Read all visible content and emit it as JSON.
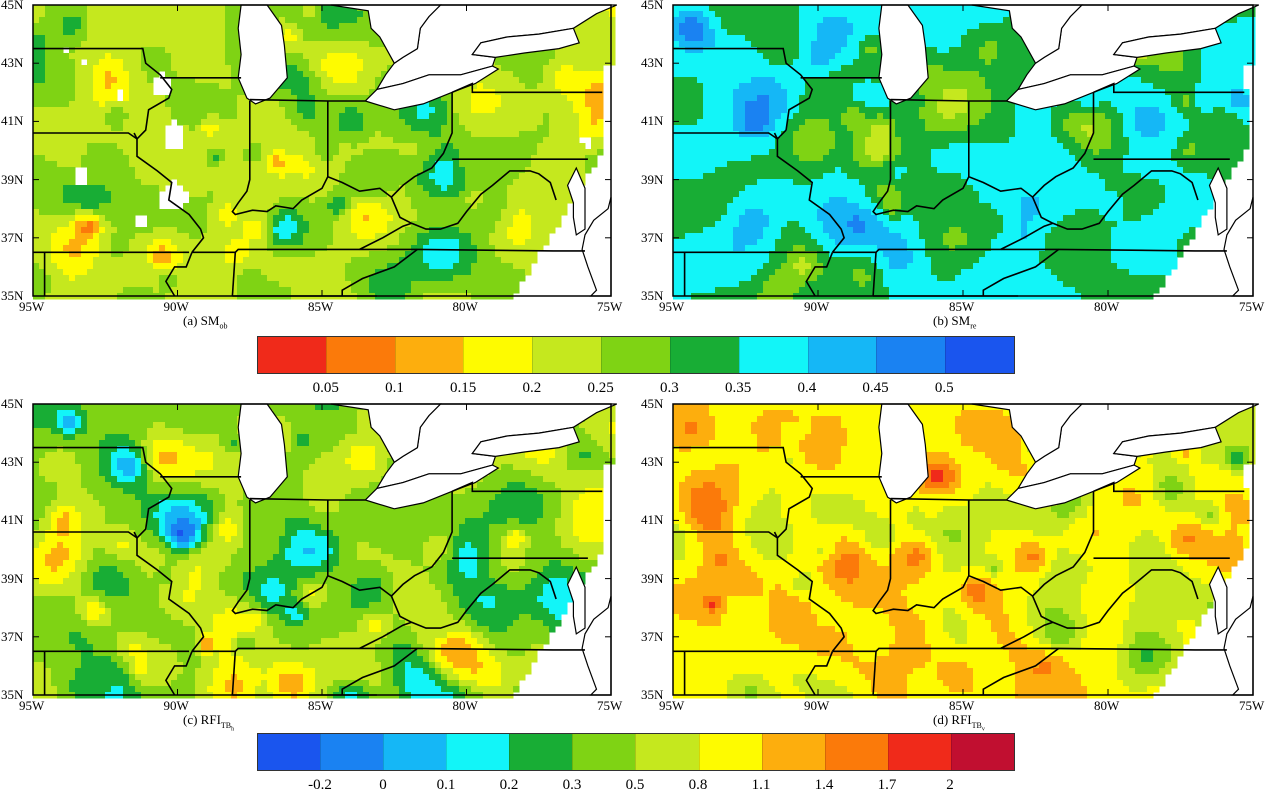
{
  "panels": [
    {
      "id": "a",
      "caption_prefix": "(a) SM",
      "caption_sub": "ob",
      "palette": "sm",
      "seed": 11,
      "bias": 0.45,
      "amp": 0.32,
      "swath": true,
      "blanks": 0.14
    },
    {
      "id": "b",
      "caption_prefix": "(b) SM",
      "caption_sub": "re",
      "palette": "sm",
      "seed": 27,
      "bias": 0.62,
      "amp": 0.28,
      "swath": true,
      "blanks": 0.0
    },
    {
      "id": "c",
      "caption_prefix": "(c) RFI",
      "caption_sub": "TB",
      "caption_subsub": "h",
      "palette": "rfi",
      "seed": 43,
      "bias": 0.48,
      "amp": 0.35,
      "swath": true,
      "blanks": 0.0
    },
    {
      "id": "d",
      "caption_prefix": "(d) RFI",
      "caption_sub": "TB",
      "caption_subsub": "v",
      "palette": "rfi",
      "seed": 59,
      "bias": 0.62,
      "amp": 0.3,
      "swath": true,
      "blanks": 0.0
    }
  ],
  "axes": {
    "lon_ticks": [
      "95W",
      "90W",
      "85W",
      "80W",
      "75W"
    ],
    "lat_ticks": [
      "35N",
      "37N",
      "39N",
      "41N",
      "43N",
      "45N"
    ],
    "lon_range": [
      -95,
      -75
    ],
    "lat_range": [
      35,
      45
    ]
  },
  "colorbars": {
    "sm": {
      "colors": [
        "#f02a1a",
        "#fb7a0a",
        "#fdae0d",
        "#fefb00",
        "#c5e81e",
        "#7fd314",
        "#18ad35",
        "#12f5f8",
        "#15b7f6",
        "#1a82f2",
        "#1a55ee"
      ],
      "labels": [
        "0.05",
        "0.1",
        "0.15",
        "0.2",
        "0.25",
        "0.3",
        "0.35",
        "0.4",
        "0.45",
        "0.5"
      ]
    },
    "rfi": {
      "colors": [
        "#1a55ee",
        "#1a82f2",
        "#15b7f6",
        "#12f5f8",
        "#18ad35",
        "#7fd314",
        "#c5e81e",
        "#fefb00",
        "#fdae0d",
        "#fb7a0a",
        "#f02a1a",
        "#c10f30"
      ],
      "labels": [
        "-0.2",
        "0",
        "0.1",
        "0.2",
        "0.3",
        "0.5",
        "0.8",
        "1.1",
        "1.4",
        "1.7",
        "2"
      ]
    }
  },
  "colors": {
    "water": "#ffffff",
    "border": "#000000"
  }
}
